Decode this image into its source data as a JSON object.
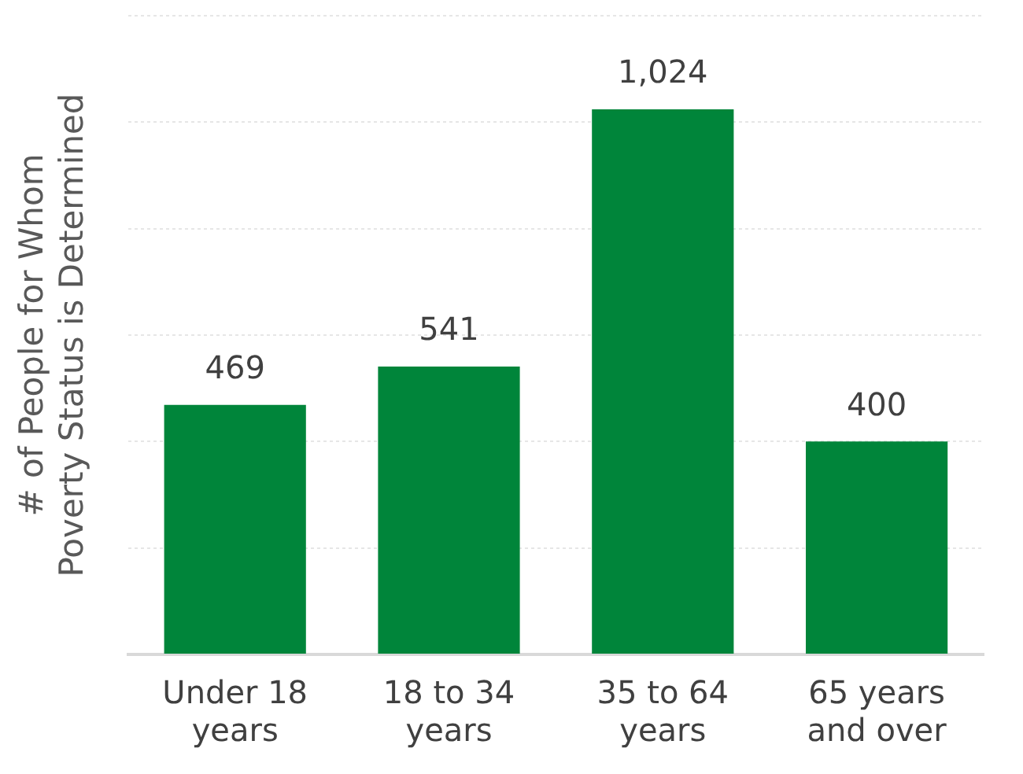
{
  "chart_data": {
    "type": "bar",
    "ylabel": "# of People for Whom Poverty Status is Determined",
    "categories": [
      "Under 18 years",
      "18 to 34 years",
      "35 to 64 years",
      "65 years and over"
    ],
    "values": [
      469,
      541,
      1024,
      400
    ],
    "color": "#00853a",
    "value_labels": [
      "469",
      "541",
      "1,024",
      "400"
    ],
    "ylim": [
      0,
      1200
    ],
    "yticks": [
      {
        "value": 0,
        "label": null
      },
      {
        "value": 200,
        "label": null
      },
      {
        "value": 400,
        "label": null
      },
      {
        "value": 600,
        "label": null
      },
      {
        "value": 800,
        "label": null
      },
      {
        "value": 1000,
        "label": null
      },
      {
        "value": 1200,
        "label": null
      }
    ],
    "grid": "y",
    "tick_labels": "x",
    "legend": false
  }
}
